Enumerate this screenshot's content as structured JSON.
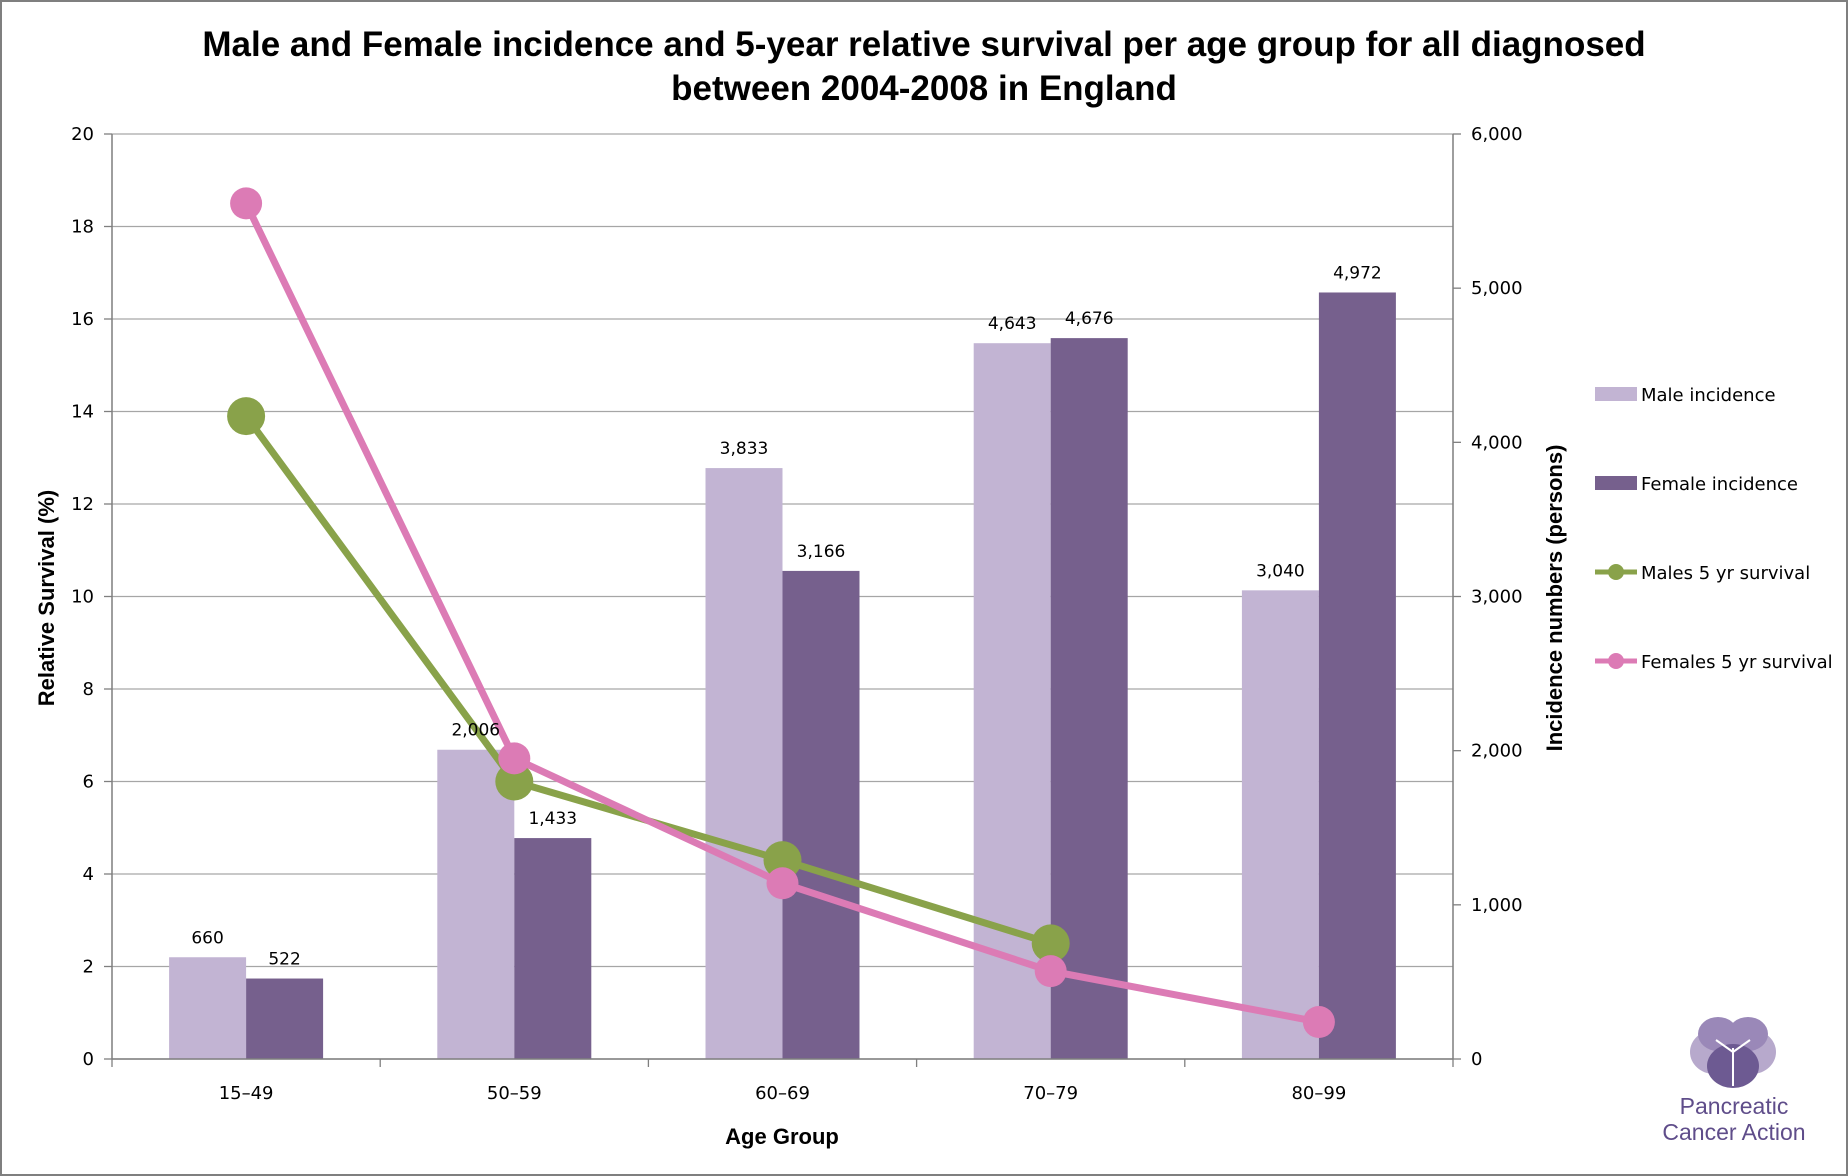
{
  "chart_data": {
    "type": "bar",
    "title_line1": "Male and Female incidence and 5-year relative survival per age group for all diagnosed",
    "title_line2": "between 2004-2008 in England",
    "xlabel": "Age Group",
    "ylabel": "Relative Survival (%)",
    "y2label": "Incidence numbers (persons)",
    "categories": [
      "15–49",
      "50–59",
      "60–69",
      "70–79",
      "80–99"
    ],
    "ylim": [
      0,
      20
    ],
    "y_ticks": [
      "0",
      "2",
      "4",
      "6",
      "8",
      "10",
      "12",
      "14",
      "16",
      "18",
      "20"
    ],
    "y2lim": [
      0,
      6000
    ],
    "y2_ticks": [
      "0",
      "1,000",
      "2,000",
      "3,000",
      "4,000",
      "5,000",
      "6,000"
    ],
    "grid": true,
    "legend_position": "right",
    "bar_series": [
      {
        "name": "Male incidence",
        "axis": "right",
        "color": "#c2b4d3",
        "values": [
          660,
          2006,
          3833,
          4643,
          3040
        ],
        "labels": [
          "660",
          "2,006",
          "3,833",
          "4,643",
          "3,040"
        ]
      },
      {
        "name": "Female incidence",
        "axis": "right",
        "color": "#76608d",
        "values": [
          522,
          1433,
          3166,
          4676,
          4972
        ],
        "labels": [
          "522",
          "1,433",
          "3,166",
          "4,676",
          "4,972"
        ]
      }
    ],
    "line_series": [
      {
        "name": "Males 5 yr survival",
        "axis": "left",
        "color": "#89a24a",
        "values": [
          13.9,
          6.0,
          4.3,
          2.5,
          null
        ]
      },
      {
        "name": "Females 5 yr survival",
        "axis": "left",
        "color": "#dc7bb5",
        "values": [
          18.5,
          6.5,
          3.8,
          1.9,
          0.8
        ]
      }
    ]
  },
  "logo": {
    "line1": "Pancreatic",
    "line2": "Cancer Action",
    "color": "#5f4d8a"
  }
}
